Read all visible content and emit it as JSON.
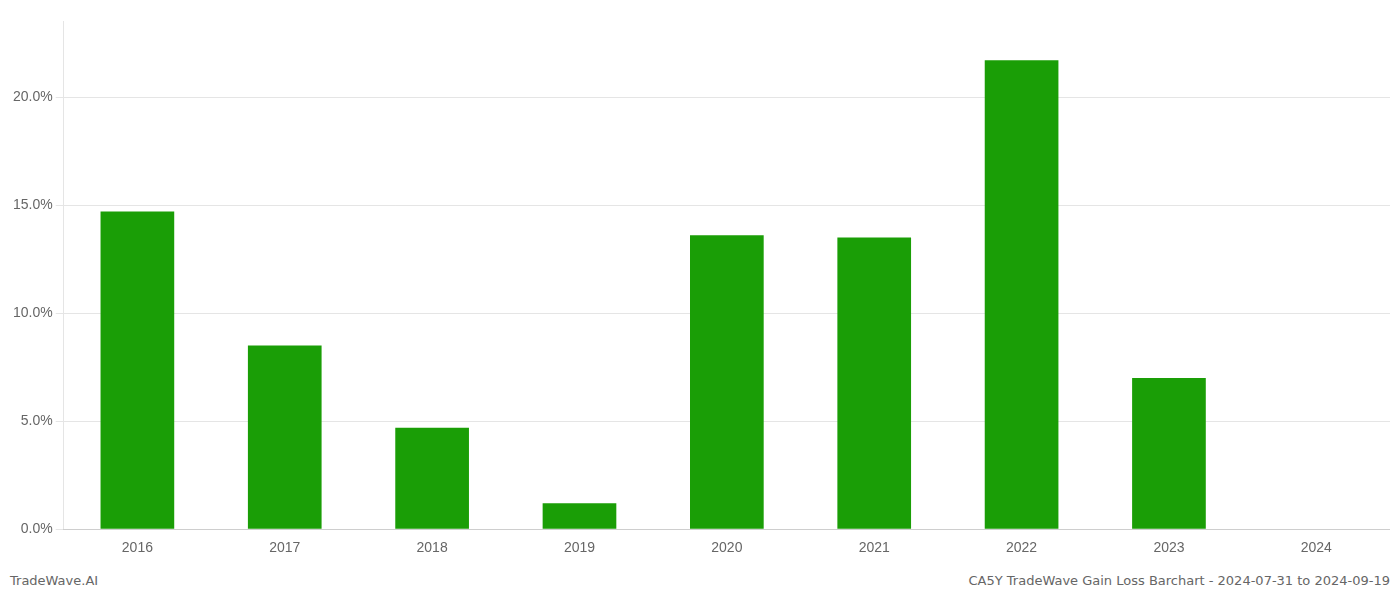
{
  "chart_data": {
    "type": "bar",
    "categories": [
      "2016",
      "2017",
      "2018",
      "2019",
      "2020",
      "2021",
      "2022",
      "2023",
      "2024"
    ],
    "values": [
      14.7,
      8.5,
      4.7,
      1.2,
      13.6,
      13.5,
      21.7,
      7.0,
      0.0
    ],
    "color": "#1a9e06",
    "ylim": [
      0,
      23.5
    ],
    "yticks": [
      {
        "value": 0.0,
        "label": "0.0%"
      },
      {
        "value": 5.0,
        "label": "5.0%"
      },
      {
        "value": 10.0,
        "label": "10.0%"
      },
      {
        "value": 15.0,
        "label": "15.0%"
      },
      {
        "value": 20.0,
        "label": "20.0%"
      }
    ],
    "grid": true,
    "annotations": [
      "TradeWave.AI",
      "CA5Y TradeWave Gain Loss Barchart - 2024-07-31 to 2024-09-19"
    ]
  }
}
